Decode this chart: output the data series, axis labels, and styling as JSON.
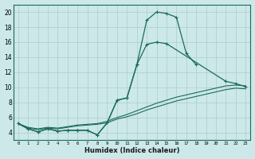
{
  "xlabel": "Humidex (Indice chaleur)",
  "bg_color": "#cce8e8",
  "grid_color": "#aacece",
  "line_color": "#1a6b5a",
  "xlim": [
    -0.5,
    23.5
  ],
  "ylim": [
    3,
    21
  ],
  "xticks": [
    0,
    1,
    2,
    3,
    4,
    5,
    6,
    7,
    8,
    9,
    10,
    11,
    12,
    13,
    14,
    15,
    16,
    17,
    18,
    19,
    20,
    21,
    22,
    23
  ],
  "yticks": [
    4,
    6,
    8,
    10,
    12,
    14,
    16,
    18,
    20
  ],
  "line1_x": [
    0,
    1,
    2,
    3,
    4,
    5,
    6,
    7,
    8,
    9,
    10,
    11,
    12,
    13,
    14,
    15,
    16,
    17,
    18
  ],
  "line1_y": [
    5.2,
    4.5,
    4.1,
    4.5,
    4.2,
    4.3,
    4.3,
    4.3,
    3.7,
    5.3,
    8.3,
    8.6,
    13.0,
    18.9,
    20.0,
    19.8,
    19.3,
    14.5,
    13.0
  ],
  "line2_x": [
    0,
    1,
    2,
    3,
    4,
    5,
    6,
    7,
    8,
    9,
    10,
    11,
    12,
    13,
    14,
    15,
    21,
    22,
    23
  ],
  "line2_y": [
    5.2,
    4.5,
    4.1,
    4.5,
    4.2,
    4.3,
    4.3,
    4.3,
    3.7,
    5.3,
    8.3,
    8.6,
    13.0,
    15.7,
    16.0,
    15.8,
    10.8,
    10.5,
    10.1
  ],
  "line3_x": [
    0,
    1,
    2,
    3,
    4,
    5,
    6,
    7,
    8,
    9,
    10,
    11,
    12,
    13,
    14,
    15,
    16,
    17,
    18,
    19,
    20,
    21,
    22,
    23
  ],
  "line3_y": [
    5.2,
    4.7,
    4.5,
    4.7,
    4.6,
    4.8,
    5.0,
    5.1,
    5.2,
    5.5,
    6.0,
    6.4,
    6.9,
    7.4,
    7.9,
    8.3,
    8.7,
    9.0,
    9.3,
    9.6,
    9.9,
    10.2,
    10.3,
    10.2
  ],
  "line4_x": [
    0,
    1,
    2,
    3,
    4,
    5,
    6,
    7,
    8,
    9,
    10,
    11,
    12,
    13,
    14,
    15,
    16,
    17,
    18,
    19,
    20,
    21,
    22,
    23
  ],
  "line4_y": [
    5.2,
    4.6,
    4.4,
    4.6,
    4.5,
    4.7,
    4.9,
    5.0,
    5.1,
    5.3,
    5.8,
    6.1,
    6.5,
    7.0,
    7.4,
    7.8,
    8.2,
    8.5,
    8.8,
    9.1,
    9.4,
    9.7,
    9.9,
    9.8
  ]
}
